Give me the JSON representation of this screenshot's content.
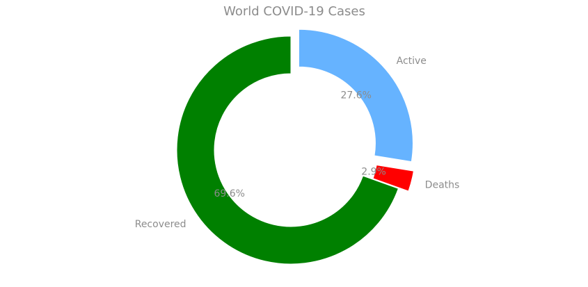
{
  "chart_data": {
    "type": "pie",
    "title": "World COVID-19 Cases",
    "categories": [
      "Active",
      "Deaths",
      "Recovered"
    ],
    "values": [
      27.6,
      2.9,
      69.6
    ],
    "percent_labels": [
      "27.6%",
      "2.9%",
      "69.6%"
    ],
    "colors": [
      "#66b3ff",
      "#ff0000",
      "#008000"
    ],
    "exploded": [
      true,
      true,
      false
    ],
    "donut": true,
    "start_angle": 90,
    "direction": "clockwise"
  }
}
